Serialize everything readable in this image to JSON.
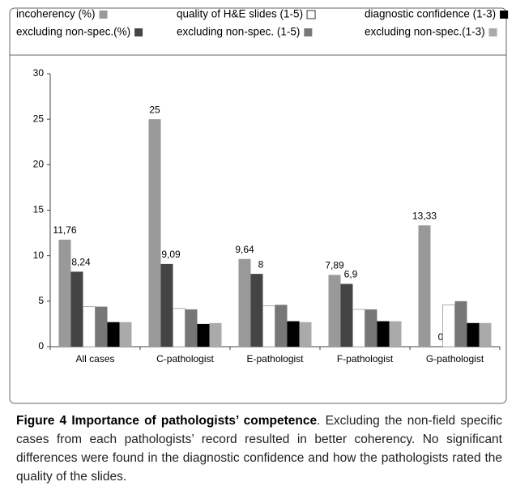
{
  "chart_data": {
    "type": "bar",
    "categories": [
      "All cases",
      "C-pathologist",
      "E-pathologist",
      "F-pathologist",
      "G-pathologist"
    ],
    "series": [
      {
        "name": "incoherency (%)",
        "color": "#999999",
        "values": [
          11.76,
          25,
          9.64,
          7.89,
          13.33
        ],
        "value_labels": [
          "11,76",
          "25",
          "9,64",
          "7,89",
          "13,33"
        ]
      },
      {
        "name": "excluding non-spec.(%)",
        "color": "#444444",
        "values": [
          8.24,
          9.09,
          8,
          6.9,
          0
        ],
        "value_labels": [
          "8,24",
          "9,09",
          "8",
          "6,9",
          "0"
        ]
      },
      {
        "name": "quality of H&E slides (1-5)",
        "color": "#ffffff",
        "values": [
          4.4,
          4.2,
          4.5,
          4.1,
          4.6
        ]
      },
      {
        "name": "excluding non-spec. (1-5)",
        "color": "#777777",
        "values": [
          4.4,
          4.1,
          4.6,
          4.1,
          5.0
        ]
      },
      {
        "name": "diagnostic confidence (1-3)",
        "color": "#000000",
        "values": [
          2.7,
          2.5,
          2.8,
          2.8,
          2.6
        ]
      },
      {
        "name": "excluding non-spec.(1-3)",
        "color": "#aaaaaa",
        "values": [
          2.7,
          2.6,
          2.7,
          2.8,
          2.6
        ]
      }
    ],
    "ylim": [
      0,
      30
    ],
    "yticks": [
      0,
      5,
      10,
      15,
      20,
      25,
      30
    ]
  },
  "caption": {
    "label": "Figure 4",
    "title": "Importance of pathologists’ competence",
    "text": ". Excluding the non-field specific cases from each pathologists’ record resulted in better coherency. No significant differences were found in the diagnostic confidence and how the pathologists rated the quality of the slides."
  }
}
